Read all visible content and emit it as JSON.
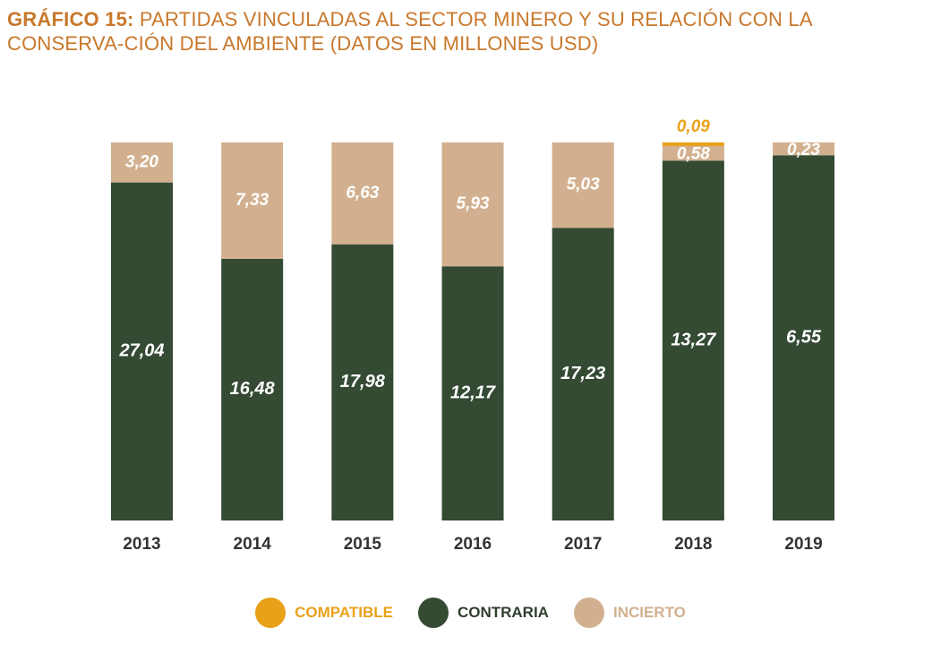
{
  "header": {
    "title_lead": "GRÁFICO 15:",
    "title_rest": "PARTIDAS VINCULADAS AL SECTOR MINERO Y SU RELACIÓN CON LA CONSERVA-CIÓN DEL AMBIENTE (DATOS EN MILLONES USD)"
  },
  "colors": {
    "compatible": "#e9a11a",
    "contraria": "#344a33",
    "incierto": "#d2b08f",
    "title": "#c8782c",
    "axis_label": "#333333"
  },
  "legend": [
    {
      "key": "compatible",
      "label": "COMPATIBLE",
      "color": "#e9a11a",
      "text_color": "#e9a11a"
    },
    {
      "key": "contraria",
      "label": "CONTRARIA",
      "color": "#344a33",
      "text_color": "#2f3f2e"
    },
    {
      "key": "incierto",
      "label": "INCIERTO",
      "color": "#d2b08f",
      "text_color": "#d2b08f"
    }
  ],
  "chart_data": {
    "type": "bar",
    "stacked": "percent",
    "title": "GRÁFICO 15: PARTIDAS VINCULADAS AL SECTOR MINERO Y SU RELACIÓN CON LA CONSERVA-CIÓN DEL AMBIENTE (DATOS EN MILLONES USD)",
    "categories": [
      "2013",
      "2014",
      "2015",
      "2016",
      "2017",
      "2018",
      "2019"
    ],
    "series": [
      {
        "name": "CONTRARIA",
        "values": [
          27.04,
          16.48,
          17.98,
          12.17,
          17.23,
          13.27,
          6.55
        ],
        "labels": [
          "27,04",
          "16,48",
          "17,98",
          "12,17",
          "17,23",
          "13,27",
          "6,55"
        ]
      },
      {
        "name": "INCIERTO",
        "values": [
          3.2,
          7.33,
          6.63,
          5.93,
          5.03,
          0.58,
          0.23
        ],
        "labels": [
          "3,20",
          "7,33",
          "6,63",
          "5,93",
          "5,03",
          "0,58",
          "0,23"
        ]
      },
      {
        "name": "COMPATIBLE",
        "values": [
          0,
          0,
          0,
          0,
          0,
          0.09,
          0
        ],
        "labels": [
          "",
          "",
          "",
          "",
          "",
          "0,09",
          ""
        ]
      }
    ],
    "xlabel": "",
    "ylabel": "",
    "grid": false,
    "legend_position": "bottom"
  }
}
